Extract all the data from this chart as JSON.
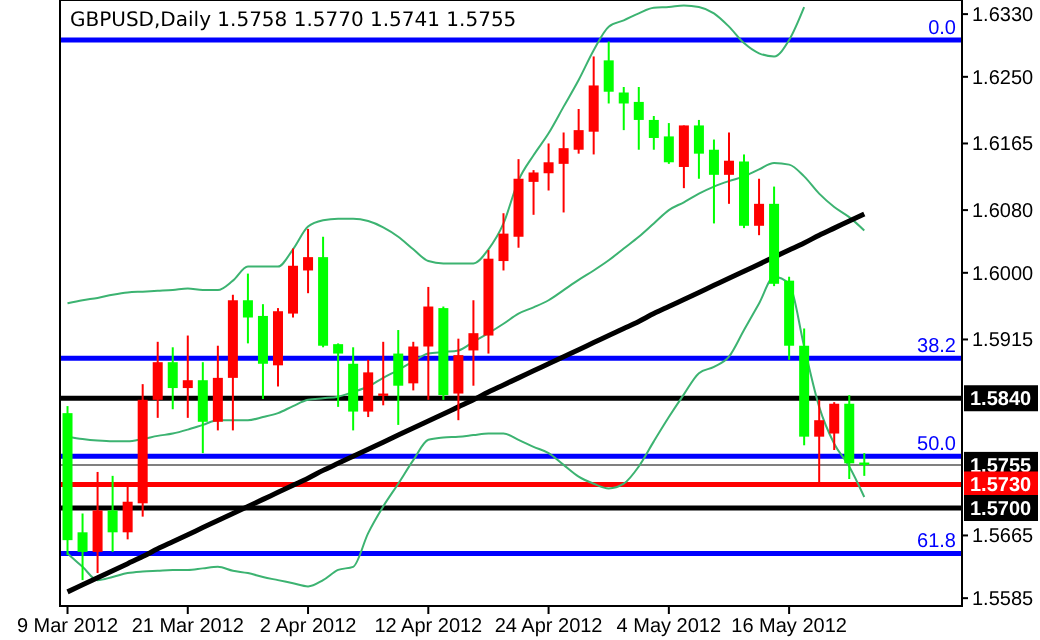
{
  "chart_data": {
    "type": "candlestick",
    "title": "GBPUSD,Daily  1.5758 1.5770 1.5741 1.5755",
    "categories": [
      "9 Mar 2012",
      null,
      null,
      null,
      null,
      null,
      null,
      null,
      "21 Mar 2012",
      null,
      null,
      null,
      null,
      null,
      null,
      null,
      "2 Apr 2012",
      null,
      null,
      null,
      null,
      null,
      null,
      null,
      "12 Apr 2012",
      null,
      null,
      null,
      null,
      null,
      null,
      null,
      "24 Apr 2012",
      null,
      null,
      null,
      null,
      null,
      null,
      null,
      "4 May 2012",
      null,
      null,
      null,
      null,
      null,
      null,
      null,
      "16 May 2012",
      null,
      null,
      null,
      null,
      null
    ],
    "ohlc": [
      [
        1.5821,
        1.583,
        1.564,
        1.5659
      ],
      [
        1.5669,
        1.5693,
        1.5608,
        1.5644
      ],
      [
        1.5644,
        1.5746,
        1.5617,
        1.5697
      ],
      [
        1.5697,
        1.5741,
        1.5644,
        1.5669
      ],
      [
        1.5669,
        1.573,
        1.566,
        1.5708
      ],
      [
        1.5706,
        1.5858,
        1.5689,
        1.5838
      ],
      [
        1.5838,
        1.5912,
        1.5815,
        1.5886
      ],
      [
        1.5886,
        1.5905,
        1.5826,
        1.5853
      ],
      [
        1.5853,
        1.592,
        1.5815,
        1.5863
      ],
      [
        1.5863,
        1.5886,
        1.577,
        1.581
      ],
      [
        1.581,
        1.5907,
        1.5799,
        1.5866
      ],
      [
        1.5866,
        1.5972,
        1.5799,
        1.5965
      ],
      [
        1.5965,
        1.5999,
        1.591,
        1.5943
      ],
      [
        1.5945,
        1.596,
        1.5839,
        1.5884
      ],
      [
        1.5882,
        1.5955,
        1.5855,
        1.5951
      ],
      [
        1.5948,
        1.6031,
        1.5943,
        1.6009
      ],
      [
        1.6003,
        1.6056,
        1.5974,
        1.602
      ],
      [
        1.602,
        1.6046,
        1.5905,
        1.5907
      ],
      [
        1.5909,
        1.591,
        1.5829,
        1.5897
      ],
      [
        1.5884,
        1.5905,
        1.5799,
        1.5823
      ],
      [
        1.5823,
        1.5889,
        1.5816,
        1.5873
      ],
      [
        1.5843,
        1.5912,
        1.5831,
        1.5846
      ],
      [
        1.5897,
        1.5927,
        1.5806,
        1.5856
      ],
      [
        1.5859,
        1.5912,
        1.585,
        1.5906
      ],
      [
        1.5906,
        1.5982,
        1.5838,
        1.5957
      ],
      [
        1.5955,
        1.5957,
        1.5838,
        1.5844
      ],
      [
        1.5846,
        1.5916,
        1.5812,
        1.5895
      ],
      [
        1.5901,
        1.5965,
        1.5856,
        1.5923
      ],
      [
        1.592,
        1.6029,
        1.5897,
        1.6018
      ],
      [
        1.6015,
        1.6076,
        1.6003,
        1.605
      ],
      [
        1.6046,
        1.6145,
        1.6032,
        1.612
      ],
      [
        1.6116,
        1.6131,
        1.6074,
        1.6128
      ],
      [
        1.6127,
        1.6165,
        1.6105,
        1.6141
      ],
      [
        1.6139,
        1.6179,
        1.6077,
        1.6159
      ],
      [
        1.6157,
        1.6209,
        1.6152,
        1.6182
      ],
      [
        1.618,
        1.6276,
        1.6151,
        1.6239
      ],
      [
        1.6271,
        1.6295,
        1.6216,
        1.6231
      ],
      [
        1.623,
        1.6237,
        1.6182,
        1.6216
      ],
      [
        1.6218,
        1.6237,
        1.6157,
        1.6195
      ],
      [
        1.6195,
        1.62,
        1.6157,
        1.6172
      ],
      [
        1.6174,
        1.6191,
        1.6139,
        1.6141
      ],
      [
        1.6135,
        1.6188,
        1.6108,
        1.6188
      ],
      [
        1.6188,
        1.6195,
        1.612,
        1.6152
      ],
      [
        1.6157,
        1.617,
        1.6063,
        1.6125
      ],
      [
        1.6125,
        1.6179,
        1.6088,
        1.6143
      ],
      [
        1.6142,
        1.6151,
        1.6057,
        1.606
      ],
      [
        1.606,
        1.612,
        1.6048,
        1.6088
      ],
      [
        1.6088,
        1.611,
        1.5983,
        1.5986
      ],
      [
        1.599,
        1.5995,
        1.5889,
        1.5907
      ],
      [
        1.5907,
        1.5929,
        1.578,
        1.5791
      ],
      [
        1.5791,
        1.5838,
        1.5731,
        1.5812
      ],
      [
        1.5795,
        1.5835,
        1.5774,
        1.5833
      ],
      [
        1.5833,
        1.5844,
        1.5737,
        1.5757
      ],
      [
        1.5758,
        1.577,
        1.5741,
        1.5755
      ]
    ],
    "colors": [
      "#00ff00",
      "#00ff00",
      "#ff0000",
      "#00ff00",
      "#ff0000",
      "#ff0000",
      "#ff0000",
      "#00ff00",
      "#ff0000",
      "#00ff00",
      "#ff0000",
      "#ff0000",
      "#00ff00",
      "#00ff00",
      "#ff0000",
      "#ff0000",
      "#ff0000",
      "#00ff00",
      "#00ff00",
      "#00ff00",
      "#ff0000",
      "#ff0000",
      "#00ff00",
      "#ff0000",
      "#ff0000",
      "#00ff00",
      "#ff0000",
      "#ff0000",
      "#ff0000",
      "#ff0000",
      "#ff0000",
      "#ff0000",
      "#ff0000",
      "#ff0000",
      "#ff0000",
      "#ff0000",
      "#00ff00",
      "#00ff00",
      "#00ff00",
      "#00ff00",
      "#00ff00",
      "#ff0000",
      "#00ff00",
      "#00ff00",
      "#ff0000",
      "#00ff00",
      "#ff0000",
      "#00ff00",
      "#00ff00",
      "#00ff00",
      "#ff0000",
      "#ff0000",
      "#00ff00",
      "#00ff00"
    ],
    "series": [
      {
        "type": "line",
        "color": "#3cb371",
        "values": [
          1.5961,
          1.5965,
          1.5968,
          1.5972,
          1.5975,
          1.5976,
          1.5977,
          1.5978,
          1.598,
          1.5978,
          1.5978,
          1.599,
          1.6008,
          1.6008,
          1.6008,
          1.603,
          1.6059,
          1.6067,
          1.6069,
          1.6069,
          1.6066,
          1.6058,
          1.6046,
          1.603,
          1.6015,
          1.6012,
          1.6012,
          1.6012,
          1.603,
          1.6063,
          1.6118,
          1.615,
          1.6178,
          1.6212,
          1.6246,
          1.6284,
          1.6314,
          1.6322,
          1.6331,
          1.6338,
          1.6339,
          1.6341,
          1.6339,
          1.6331,
          1.6314,
          1.6293,
          1.628,
          1.6276,
          1.6297,
          1.6339,
          null,
          null,
          null,
          null
        ]
      },
      {
        "type": "line",
        "color": "#3cb371",
        "values": [
          1.5791,
          1.5788,
          1.5786,
          1.5785,
          1.5785,
          1.5788,
          1.5792,
          1.5795,
          1.58,
          1.5806,
          1.5812,
          1.5812,
          1.5812,
          1.5816,
          1.5821,
          1.583,
          1.5838,
          1.584,
          1.5842,
          1.5848,
          1.5855,
          1.5866,
          1.5876,
          1.5887,
          1.5897,
          1.5899,
          1.5901,
          1.5912,
          1.5923,
          1.5935,
          1.5948,
          1.5956,
          1.5965,
          1.5978,
          1.5991,
          1.6003,
          1.6016,
          1.6031,
          1.6046,
          1.6063,
          1.608,
          1.609,
          1.6101,
          1.611,
          1.6117,
          1.6123,
          1.6132,
          1.614,
          1.6138,
          1.6123,
          1.6101,
          1.6084,
          1.6071,
          1.6054
        ]
      },
      {
        "type": "line",
        "color": "#3cb371",
        "values": [
          1.5642,
          1.5625,
          1.5608,
          1.5612,
          1.5617,
          1.5619,
          1.562,
          1.5621,
          1.5621,
          1.5623,
          1.5625,
          1.562,
          1.5617,
          1.5612,
          1.5608,
          1.5604,
          1.56,
          1.5608,
          1.5621,
          1.5625,
          1.5668,
          1.5702,
          1.5731,
          1.5761,
          1.5787,
          1.579,
          1.5791,
          1.5793,
          1.5795,
          1.5795,
          1.5787,
          1.5778,
          1.577,
          1.5755,
          1.574,
          1.5731,
          1.5725,
          1.5731,
          1.5753,
          1.5785,
          1.5816,
          1.5845,
          1.5872,
          1.588,
          1.5893,
          1.5927,
          1.5961,
          1.5995,
          1.5986,
          1.5906,
          1.5829,
          1.5782,
          1.5753,
          1.5714
        ]
      },
      {
        "type": "line",
        "color": "#000000",
        "values": [
          1.5593,
          1.5602,
          1.5611,
          1.562,
          1.5629,
          1.5638,
          1.5648,
          1.5657,
          1.5666,
          1.5675,
          1.5684,
          1.5693,
          1.5702,
          1.5711,
          1.572,
          1.5729,
          1.5738,
          1.5748,
          1.5757,
          1.5766,
          1.5775,
          1.5784,
          1.5793,
          1.5802,
          1.5811,
          1.582,
          1.5829,
          1.5838,
          1.5848,
          1.5857,
          1.5866,
          1.5875,
          1.5884,
          1.5893,
          1.5902,
          1.5911,
          1.592,
          1.5929,
          1.5938,
          1.5948,
          1.5957,
          1.5966,
          1.5975,
          1.5984,
          1.5993,
          1.6002,
          1.6011,
          1.602,
          1.6029,
          1.6038,
          1.6048,
          1.6057,
          1.6066,
          1.6075
        ]
      }
    ],
    "ylim": [
      1.5575,
      1.6348
    ],
    "yticks": [
      {
        "value": 1.633,
        "label": "1.6330"
      },
      {
        "value": 1.625,
        "label": "1.6250"
      },
      {
        "value": 1.6165,
        "label": "1.6165"
      },
      {
        "value": 1.608,
        "label": "1.6080"
      },
      {
        "value": 1.6,
        "label": "1.6000"
      },
      {
        "value": 1.5915,
        "label": "1.5915"
      },
      {
        "value": 1.5665,
        "label": "1.5665"
      },
      {
        "value": 1.5585,
        "label": "1.5585"
      }
    ],
    "ref_lines": [
      {
        "axis": "y",
        "value": 1.6297,
        "color": "#0000ff"
      },
      {
        "axis": "y",
        "value": 1.5891,
        "color": "#0000ff"
      },
      {
        "axis": "y",
        "value": 1.584,
        "label": "1.5840",
        "color": "#000000"
      },
      {
        "axis": "y",
        "value": 1.5766,
        "color": "#0000ff"
      },
      {
        "axis": "y",
        "value": 1.5755,
        "label": "1.5755",
        "color": "#808080"
      },
      {
        "axis": "y",
        "value": 1.573,
        "label": "1.5730",
        "color": "#ff0000"
      },
      {
        "axis": "y",
        "value": 1.57,
        "label": "1.5700",
        "color": "#000000"
      },
      {
        "axis": "y",
        "value": 1.5642,
        "color": "#0000ff"
      }
    ],
    "annotations": [
      {
        "text": "0.0",
        "y": 1.6297
      },
      {
        "text": "38.2",
        "y": 1.5891
      },
      {
        "text": "50.0",
        "y": 1.5766
      },
      {
        "text": "61.8",
        "y": 1.5642
      }
    ],
    "grid": false
  }
}
